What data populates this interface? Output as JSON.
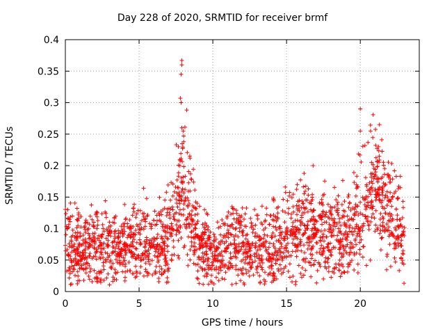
{
  "chart_data": {
    "type": "scatter",
    "title": "Day 228 of 2020, SRMTID for receiver brmf",
    "xlabel": "GPS time / hours",
    "ylabel": "SRMTID / TECUs",
    "xlim": [
      0,
      24
    ],
    "ylim": [
      0,
      0.4
    ],
    "xticks": [
      0,
      5,
      10,
      15,
      20
    ],
    "xtick_labels": [
      "0",
      "5",
      "10",
      "15",
      "20"
    ],
    "yticks": [
      0,
      0.05,
      0.1,
      0.15,
      0.2,
      0.25,
      0.3,
      0.35,
      0.4
    ],
    "ytick_labels": [
      "0",
      "0.05",
      "0.1",
      "0.15",
      "0.2",
      "0.25",
      "0.3",
      "0.35",
      "0.4"
    ],
    "grid": true,
    "marker": "+",
    "marker_color": "#ff0000",
    "grid_color": "#a0a0a0",
    "x_data_range": [
      0.0,
      23.0
    ],
    "trend": [
      {
        "hour": 0.0,
        "level": 0.075
      },
      {
        "hour": 1.0,
        "level": 0.075
      },
      {
        "hour": 2.0,
        "level": 0.07
      },
      {
        "hour": 3.0,
        "level": 0.065
      },
      {
        "hour": 4.0,
        "level": 0.07
      },
      {
        "hour": 5.0,
        "level": 0.075
      },
      {
        "hour": 6.0,
        "level": 0.07
      },
      {
        "hour": 7.0,
        "level": 0.09
      },
      {
        "hour": 7.5,
        "level": 0.12
      },
      {
        "hour": 8.0,
        "level": 0.17
      },
      {
        "hour": 8.4,
        "level": 0.14
      },
      {
        "hour": 9.0,
        "level": 0.08
      },
      {
        "hour": 10.0,
        "level": 0.06
      },
      {
        "hour": 11.0,
        "level": 0.08
      },
      {
        "hour": 12.0,
        "level": 0.07
      },
      {
        "hour": 13.0,
        "level": 0.065
      },
      {
        "hour": 14.0,
        "level": 0.07
      },
      {
        "hour": 15.0,
        "level": 0.085
      },
      {
        "hour": 16.0,
        "level": 0.1
      },
      {
        "hour": 17.0,
        "level": 0.1
      },
      {
        "hour": 18.0,
        "level": 0.09
      },
      {
        "hour": 19.0,
        "level": 0.085
      },
      {
        "hour": 20.0,
        "level": 0.13
      },
      {
        "hour": 21.0,
        "level": 0.16
      },
      {
        "hour": 22.0,
        "level": 0.13
      },
      {
        "hour": 23.0,
        "level": 0.09
      }
    ],
    "highlights": [
      {
        "x": 7.9,
        "y": 0.367
      },
      {
        "x": 7.9,
        "y": 0.36
      },
      {
        "x": 7.85,
        "y": 0.345
      },
      {
        "x": 7.8,
        "y": 0.307
      },
      {
        "x": 7.85,
        "y": 0.3
      },
      {
        "x": 7.9,
        "y": 0.26
      },
      {
        "x": 8.0,
        "y": 0.255
      },
      {
        "x": 20.0,
        "y": 0.29
      },
      {
        "x": 20.0,
        "y": 0.255
      },
      {
        "x": 20.7,
        "y": 0.255
      },
      {
        "x": 21.3,
        "y": 0.265
      },
      {
        "x": 16.8,
        "y": 0.2
      },
      {
        "x": 9.0,
        "y": 0.02
      },
      {
        "x": 14.0,
        "y": 0.015
      },
      {
        "x": 17.5,
        "y": 0.02
      }
    ]
  }
}
